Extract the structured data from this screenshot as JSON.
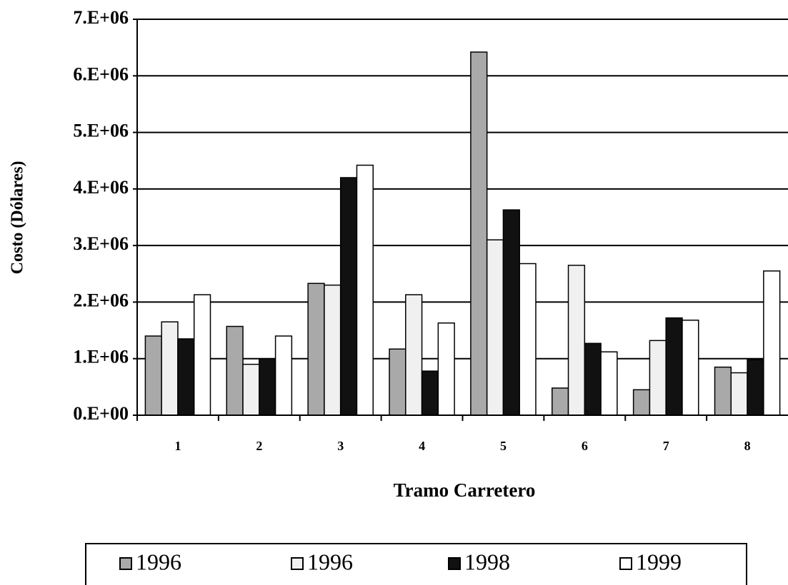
{
  "chart_data": {
    "type": "bar",
    "x_label": "Tramo Carretero",
    "y_label": "Costo (Dólares)",
    "categories": [
      "1",
      "2",
      "3",
      "4",
      "5",
      "6",
      "7",
      "8"
    ],
    "series": [
      {
        "name": "1996",
        "color": "#a9a9a9",
        "values": [
          1400000,
          1570000,
          2330000,
          1170000,
          6420000,
          480000,
          450000,
          850000
        ]
      },
      {
        "name": "1996",
        "color": "#f0f0f0",
        "values": [
          1650000,
          900000,
          2300000,
          2130000,
          3100000,
          2650000,
          1320000,
          750000
        ]
      },
      {
        "name": "1998",
        "color": "#111111",
        "values": [
          1350000,
          1000000,
          4200000,
          780000,
          3630000,
          1270000,
          1720000,
          980000
        ]
      },
      {
        "name": "1999",
        "color": "#ffffff",
        "values": [
          2130000,
          1400000,
          4420000,
          1630000,
          2680000,
          1120000,
          1680000,
          2550000
        ]
      }
    ],
    "ylim": [
      0,
      7000000
    ],
    "yticks": [
      {
        "value": 0,
        "label": "0.E+00"
      },
      {
        "value": 1000000,
        "label": "1.E+06"
      },
      {
        "value": 2000000,
        "label": "2.E+06"
      },
      {
        "value": 3000000,
        "label": "3.E+06"
      },
      {
        "value": 4000000,
        "label": "4.E+06"
      },
      {
        "value": 5000000,
        "label": "5.E+06"
      },
      {
        "value": 6000000,
        "label": "6.E+06"
      },
      {
        "value": 7000000,
        "label": "7.E+06"
      }
    ],
    "grid": true,
    "legend": "bottom"
  }
}
